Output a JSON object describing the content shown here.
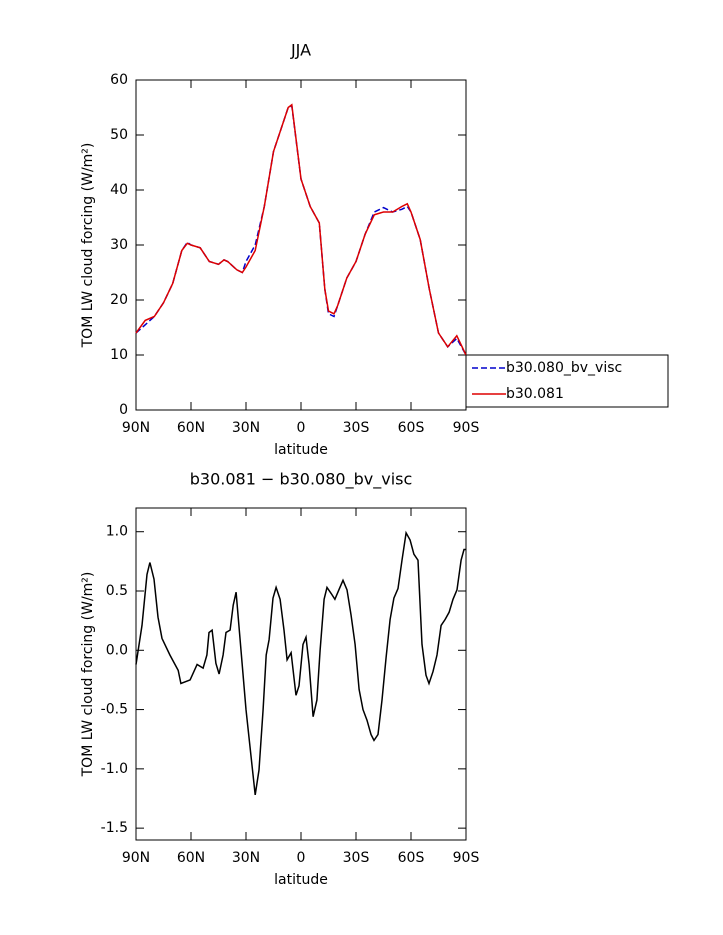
{
  "chart_data": [
    {
      "type": "line",
      "title": "JJA",
      "xlabel": "latitude",
      "ylabel": "TOM LW cloud forcing (W/m²)",
      "xlim": [
        90,
        -90
      ],
      "xticks": [
        {
          "value": 90,
          "label": "90N"
        },
        {
          "value": 60,
          "label": "60N"
        },
        {
          "value": 30,
          "label": "30N"
        },
        0,
        {
          "value": -30,
          "label": "30S"
        },
        {
          "value": -60,
          "label": "60S"
        },
        {
          "value": -90,
          "label": "90S"
        }
      ],
      "ylim": [
        0,
        60
      ],
      "yticks": [
        0,
        10,
        20,
        30,
        40,
        50,
        60
      ],
      "legend": "right",
      "x": [
        90,
        85,
        80,
        75,
        70,
        65,
        62,
        60,
        55,
        50,
        45,
        42,
        40,
        35,
        32,
        30,
        25,
        20,
        15,
        10,
        7,
        5,
        0,
        -5,
        -10,
        -13,
        -15,
        -18,
        -20,
        -25,
        -30,
        -35,
        -40,
        -45,
        -50,
        -55,
        -58,
        -60,
        -65,
        -70,
        -75,
        -80,
        -85,
        -90
      ],
      "series": [
        {
          "name": "b30.080_bv_visc",
          "color": "#0000cc",
          "dash": true,
          "values": [
            14,
            15.5,
            17,
            19.5,
            23,
            29,
            30.5,
            30,
            29.5,
            27,
            26.5,
            27.3,
            27,
            25.5,
            25,
            27,
            30,
            37,
            47,
            52,
            55,
            55.3,
            42,
            37,
            34,
            22,
            17.5,
            17,
            19,
            24,
            27,
            32,
            36,
            36.8,
            36,
            36.5,
            37,
            36,
            31,
            22,
            14,
            11.5,
            13,
            10
          ]
        },
        {
          "name": "b30.081",
          "color": "#dd0000",
          "dash": false,
          "values": [
            14,
            16.3,
            17,
            19.5,
            23,
            29,
            30.3,
            30,
            29.5,
            27,
            26.5,
            27.3,
            27,
            25.5,
            25,
            26,
            29,
            37,
            47,
            52,
            55,
            55.5,
            42,
            37,
            34,
            22,
            18,
            17.5,
            19,
            24,
            27,
            32,
            35.5,
            36,
            36,
            37,
            37.5,
            36,
            31,
            22,
            14,
            11.5,
            13.5,
            10
          ]
        }
      ]
    },
    {
      "type": "line",
      "title": "b30.081 − b30.080_bv_visc",
      "xlabel": "latitude",
      "ylabel": "TOM LW cloud forcing (W/m²)",
      "xlim": [
        90,
        -90
      ],
      "xticks": [
        {
          "value": 90,
          "label": "90N"
        },
        {
          "value": 60,
          "label": "60N"
        },
        {
          "value": 30,
          "label": "30N"
        },
        0,
        {
          "value": -30,
          "label": "30S"
        },
        {
          "value": -60,
          "label": "60S"
        },
        {
          "value": -90,
          "label": "90S"
        }
      ],
      "ylim": [
        -1.6,
        1.2
      ],
      "yticks": [
        -1.5,
        {
          "value": -1,
          "label": "-1.0"
        },
        -0.5,
        {
          "value": 0,
          "label": "0.0"
        },
        0.5,
        {
          "value": 1,
          "label": "1.0"
        }
      ],
      "x": [
        90,
        86.7,
        84,
        82.4,
        80.2,
        78,
        75.8,
        71.5,
        67,
        65.5,
        60.5,
        56.7,
        53.4,
        51.3,
        50.2,
        48.5,
        46.4,
        44.7,
        42.5,
        40.9,
        38.7,
        37,
        35.4,
        32.7,
        30,
        26.7,
        25,
        22.9,
        20.7,
        19,
        17.4,
        15.3,
        13.6,
        11.4,
        9.3,
        7.6,
        5.4,
        2.7,
        1.1,
        -1.1,
        -2.7,
        -4.4,
        -6.6,
        -8.7,
        -10.4,
        -12.6,
        -14.2,
        -16.4,
        -18.5,
        -20.7,
        -22.9,
        -25.1,
        -27.3,
        -29.5,
        -31.7,
        -33.8,
        -36,
        -38.2,
        -39.8,
        -42,
        -44.2,
        -46.4,
        -48.6,
        -50.7,
        -52.9,
        -55.1,
        -57.3,
        -59.5,
        -61.6,
        -63.8,
        -66,
        -68.2,
        -69.8,
        -72,
        -74.2,
        -76.4,
        -78.6,
        -80.8,
        -82.9,
        -85.1,
        -87.3,
        -88.9,
        -90
      ],
      "series": [
        {
          "color": "#000000",
          "dash": false,
          "values": [
            -0.12,
            0.21,
            0.64,
            0.74,
            0.6,
            0.28,
            0.1,
            -0.04,
            -0.17,
            -0.28,
            -0.25,
            -0.12,
            -0.15,
            -0.04,
            0.15,
            0.17,
            -0.11,
            -0.2,
            -0.04,
            0.15,
            0.17,
            0.38,
            0.49,
            0.0,
            -0.5,
            -0.97,
            -1.22,
            -1.01,
            -0.5,
            -0.04,
            0.09,
            0.44,
            0.53,
            0.43,
            0.17,
            -0.08,
            -0.02,
            -0.38,
            -0.3,
            0.05,
            0.11,
            -0.12,
            -0.56,
            -0.42,
            0.0,
            0.43,
            0.53,
            0.48,
            0.43,
            0.51,
            0.59,
            0.51,
            0.3,
            0.05,
            -0.33,
            -0.5,
            -0.59,
            -0.71,
            -0.76,
            -0.71,
            -0.42,
            -0.06,
            0.26,
            0.44,
            0.52,
            0.76,
            0.99,
            0.93,
            0.81,
            0.76,
            0.05,
            -0.21,
            -0.28,
            -0.18,
            -0.04,
            0.21,
            0.26,
            0.32,
            0.43,
            0.51,
            0.76,
            0.85,
            0.85
          ]
        }
      ]
    }
  ]
}
